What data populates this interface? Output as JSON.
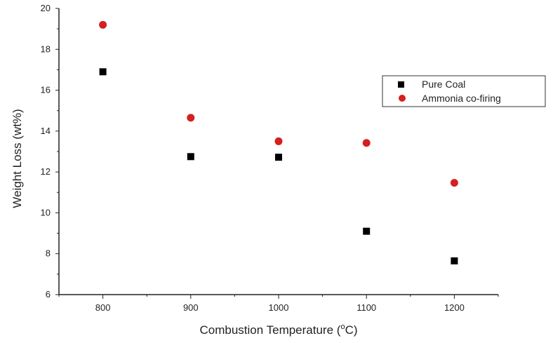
{
  "chart_data": {
    "type": "scatter",
    "xlabel_prefix": "Combustion Temperature (",
    "xlabel_sup": "o",
    "xlabel_suffix": "C)",
    "ylabel": "Weight Loss (wt%)",
    "xlim": [
      750,
      1250
    ],
    "ylim": [
      6,
      20
    ],
    "xticks": [
      800,
      900,
      1000,
      1100,
      1200
    ],
    "yticks": [
      6,
      8,
      10,
      12,
      14,
      16,
      18,
      20
    ],
    "grid": false,
    "legend_position": "right",
    "series": [
      {
        "name": "Pure Coal",
        "marker": "square",
        "color": "#000000",
        "x": [
          800,
          900,
          1000,
          1100,
          1200
        ],
        "y": [
          16.9,
          12.75,
          12.72,
          9.1,
          7.65
        ]
      },
      {
        "name": "Ammonia co-firing",
        "marker": "circle",
        "color": "#d42020",
        "x": [
          800,
          900,
          1000,
          1100,
          1200
        ],
        "y": [
          19.2,
          14.65,
          13.5,
          13.42,
          11.47
        ]
      }
    ]
  }
}
